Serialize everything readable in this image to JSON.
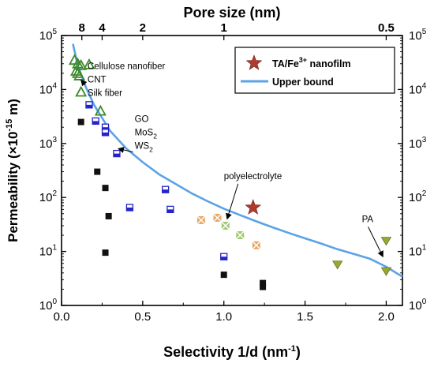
{
  "chart_data": {
    "type": "scatter",
    "xlabel": "Selectivity 1/d (nm",
    "xlabel_sup": "-1",
    "xlabel_close": ")",
    "ylabel": "Permeability (×10",
    "ylabel_sup": "-15",
    "ylabel_close": " m)",
    "top_axis_label": "Pore size (nm)",
    "xlim": [
      0.0,
      2.1
    ],
    "ylim_log10": [
      0,
      5
    ],
    "x_ticks": [
      "0.0",
      "0.5",
      "1.0",
      "1.5",
      "2.0"
    ],
    "x_tick_values": [
      0.0,
      0.5,
      1.0,
      1.5,
      2.0
    ],
    "y_ticks_exponents": [
      "0",
      "1",
      "2",
      "3",
      "4",
      "5"
    ],
    "y_tick_base": "10",
    "top_ticks": [
      {
        "label": "8",
        "value": 0.125
      },
      {
        "label": "4",
        "value": 0.25
      },
      {
        "label": "2",
        "value": 0.5
      },
      {
        "label": "1",
        "value": 1.0
      },
      {
        "label": "0.5",
        "value": 2.0
      }
    ],
    "legend": {
      "placement": "top-right",
      "items": [
        {
          "label": "TA/Fe",
          "sup": "3+",
          "label_tail": " nanofilm",
          "marker": "star"
        },
        {
          "label": "Upper bound",
          "sup": "",
          "label_tail": "",
          "marker": "line"
        }
      ]
    },
    "upper_bound": {
      "name": "Upper bound",
      "color": "#5ba3e6",
      "points": [
        {
          "x": 0.07,
          "y": 70000
        },
        {
          "x": 0.1,
          "y": 28000
        },
        {
          "x": 0.15,
          "y": 11000
        },
        {
          "x": 0.2,
          "y": 5200
        },
        {
          "x": 0.3,
          "y": 1700
        },
        {
          "x": 0.4,
          "y": 800
        },
        {
          "x": 0.5,
          "y": 450
        },
        {
          "x": 0.6,
          "y": 270
        },
        {
          "x": 0.7,
          "y": 180
        },
        {
          "x": 0.8,
          "y": 120
        },
        {
          "x": 0.9,
          "y": 85
        },
        {
          "x": 1.0,
          "y": 62
        },
        {
          "x": 1.1,
          "y": 47
        },
        {
          "x": 1.2,
          "y": 36
        },
        {
          "x": 1.3,
          "y": 28
        },
        {
          "x": 1.4,
          "y": 22
        },
        {
          "x": 1.5,
          "y": 17.5
        },
        {
          "x": 1.6,
          "y": 14
        },
        {
          "x": 1.7,
          "y": 11
        },
        {
          "x": 1.8,
          "y": 9
        },
        {
          "x": 1.9,
          "y": 7.3
        },
        {
          "x": 2.0,
          "y": 5.2
        },
        {
          "x": 2.1,
          "y": 3.4
        }
      ]
    },
    "series": [
      {
        "group": "cellulose-cnt-silk",
        "marker": "open-triangle",
        "color": "#3c8a2a",
        "points": [
          {
            "x": 0.08,
            "y": 35000
          },
          {
            "x": 0.1,
            "y": 30000
          },
          {
            "x": 0.12,
            "y": 28000
          },
          {
            "x": 0.09,
            "y": 22000
          },
          {
            "x": 0.1,
            "y": 20000
          },
          {
            "x": 0.11,
            "y": 18000
          },
          {
            "x": 0.12,
            "y": 9000
          },
          {
            "x": 0.24,
            "y": 4000
          },
          {
            "x": 0.17,
            "y": 29000
          }
        ]
      },
      {
        "group": "go-mos2-ws2",
        "marker": "half-filled-square",
        "color": "#2323c8",
        "points": [
          {
            "x": 0.17,
            "y": 5200
          },
          {
            "x": 0.21,
            "y": 2600
          },
          {
            "x": 0.27,
            "y": 2000
          },
          {
            "x": 0.27,
            "y": 1600
          },
          {
            "x": 0.34,
            "y": 650
          },
          {
            "x": 0.42,
            "y": 65
          },
          {
            "x": 0.64,
            "y": 140
          },
          {
            "x": 0.67,
            "y": 60
          },
          {
            "x": 1.0,
            "y": 8
          }
        ]
      },
      {
        "group": "filled-squares",
        "marker": "filled-square",
        "color": "#111111",
        "points": [
          {
            "x": 0.12,
            "y": 2500
          },
          {
            "x": 0.22,
            "y": 300
          },
          {
            "x": 0.27,
            "y": 150
          },
          {
            "x": 0.29,
            "y": 45
          },
          {
            "x": 0.27,
            "y": 9.5
          },
          {
            "x": 1.0,
            "y": 3.7
          },
          {
            "x": 1.24,
            "y": 2.6
          },
          {
            "x": 1.24,
            "y": 2.2
          }
        ]
      },
      {
        "group": "polyelectrolyte",
        "marker": "crossed-square",
        "color": "#e09a4c",
        "points": [
          {
            "x": 0.86,
            "y": 38
          },
          {
            "x": 0.96,
            "y": 42
          },
          {
            "x": 1.2,
            "y": 13
          }
        ]
      },
      {
        "group": "polyelectrolyte-green",
        "marker": "crossed-square",
        "color": "#8fc05a",
        "points": [
          {
            "x": 1.01,
            "y": 30
          },
          {
            "x": 1.1,
            "y": 20
          }
        ]
      },
      {
        "group": "pa",
        "marker": "down-triangle",
        "color": "#9aa832",
        "points": [
          {
            "x": 1.7,
            "y": 5.8
          },
          {
            "x": 2.0,
            "y": 16
          },
          {
            "x": 2.0,
            "y": 4.4
          }
        ]
      },
      {
        "group": "ta-fe-nanofilm",
        "marker": "star",
        "color": "#b03a2e",
        "points": [
          {
            "x": 1.18,
            "y": 65
          }
        ]
      }
    ],
    "annotations": [
      {
        "lines": [
          "Cellulose nanofiber",
          "CNT",
          "Silk fiber"
        ],
        "anchor": {
          "x": 0.16,
          "y": 24000
        },
        "arrow_to": {
          "x": 0.12,
          "y": 15000
        }
      },
      {
        "lines": [
          "GO",
          "MoS",
          "WS"
        ],
        "subs": [
          "",
          "2",
          "2"
        ],
        "anchor": {
          "x": 0.45,
          "y": 2500
        },
        "arrow_to": {
          "x": 0.35,
          "y": 800
        }
      },
      {
        "lines": [
          "polyelectrolyte"
        ],
        "anchor": {
          "x": 1.0,
          "y": 220
        },
        "arrow_to": {
          "x": 1.02,
          "y": 40
        }
      },
      {
        "lines": [
          "PA"
        ],
        "anchor": {
          "x": 1.85,
          "y": 35
        },
        "arrow_to": {
          "x": 1.98,
          "y": 8
        }
      }
    ]
  }
}
